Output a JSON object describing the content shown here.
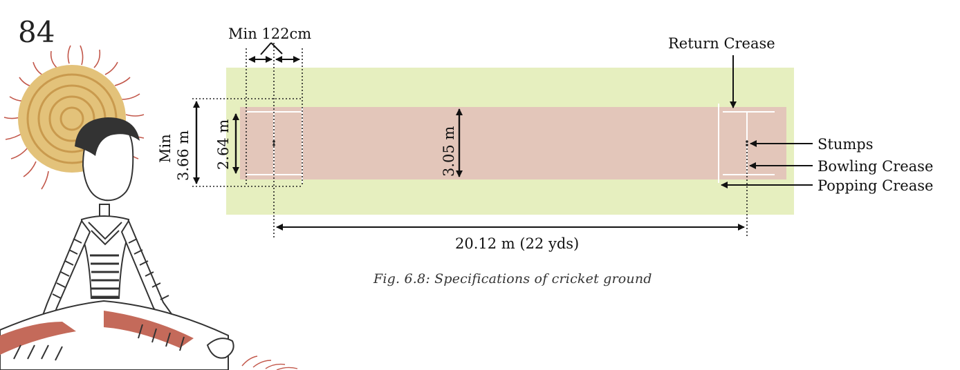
{
  "page_number": "84",
  "caption": "Fig. 6.8: Specifications of cricket ground",
  "labels": {
    "min_122": "Min 122cm",
    "return_crease": "Return Crease",
    "stumps": "Stumps",
    "bowling_crease": "Bowling Crease",
    "popping_crease": "Popping Crease",
    "min_word": "Min",
    "min_366": "3.66 m",
    "dim_264": "2.64 m",
    "dim_305": "3.05 m",
    "pitch_length": "20.12 m (22 yds)"
  },
  "colors": {
    "outfield": "#e6efbf",
    "pitch": "#e3c6ba",
    "crease_lines": "#ffffff",
    "arrows": "#111111"
  }
}
